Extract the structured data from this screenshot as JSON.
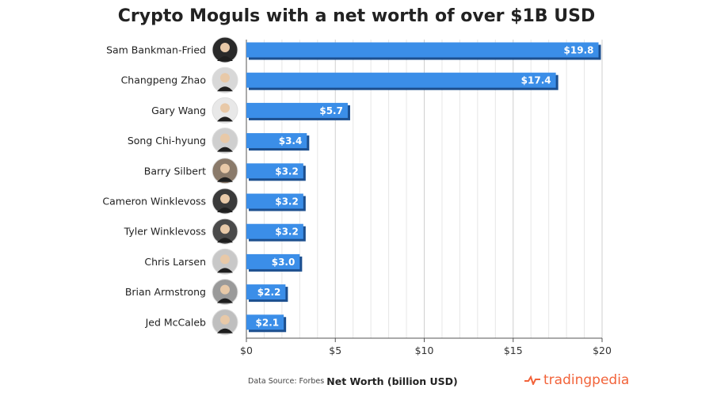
{
  "chart_data": {
    "type": "bar",
    "orientation": "horizontal",
    "title": "Crypto Moguls with a net worth of over $1B USD",
    "xlabel": "Net Worth (billion USD)",
    "ylabel": "",
    "xlim": [
      0,
      20
    ],
    "xticks": [
      0,
      5,
      10,
      15,
      20
    ],
    "xtick_labels": [
      "$0",
      "$5",
      "$10",
      "$15",
      "$20"
    ],
    "grid": "vertical",
    "categories": [
      "Sam Bankman-Fried",
      "Changpeng Zhao",
      "Gary Wang",
      "Song Chi-hyung",
      "Barry Silbert",
      "Cameron Winklevoss",
      "Tyler Winklevoss",
      "Chris Larsen",
      "Brian Armstrong",
      "Jed McCaleb"
    ],
    "values": [
      19.8,
      17.4,
      5.7,
      3.4,
      3.2,
      3.2,
      3.2,
      3.0,
      2.2,
      2.1
    ],
    "value_labels": [
      "$19.8",
      "$17.4",
      "$5.7",
      "$3.4",
      "$3.2",
      "$3.2",
      "$3.2",
      "$3.0",
      "$2.2",
      "$2.1"
    ],
    "bar_color": "#3b8ee8",
    "bar_shadow_color": "#1c4f8f"
  },
  "footer": {
    "source": "Data Source: Forbes",
    "brand": "tradingpedia",
    "brand_color": "#f2633a"
  }
}
